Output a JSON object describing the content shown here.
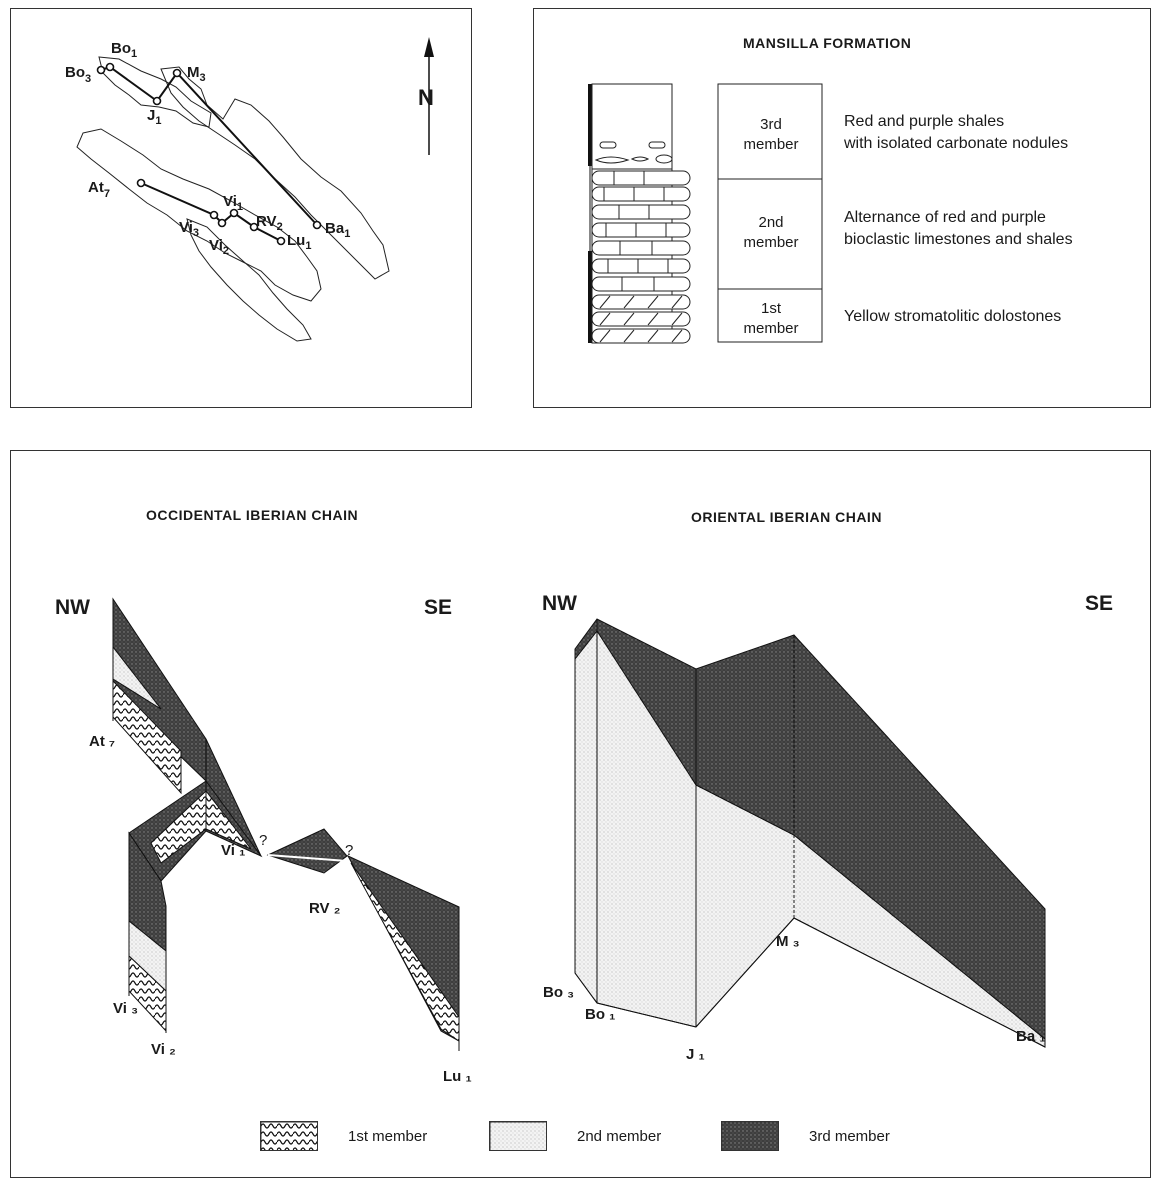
{
  "map_panel": {
    "north": "N",
    "stations": {
      "bo1": "Bo",
      "bo1_sub": "1",
      "bo3": "Bo",
      "bo3_sub": "3",
      "m3": "M",
      "m3_sub": "3",
      "j1": "J",
      "j1_sub": "1",
      "at7": "At",
      "at7_sub": "7",
      "vi1": "Vi",
      "vi1_sub": "1",
      "vi2": "Vi",
      "vi2_sub": "2",
      "vi3": "Vi",
      "vi3_sub": "3",
      "rv2": "RV",
      "rv2_sub": "2",
      "lu1": "Lu",
      "lu1_sub": "1",
      "ba1": "Ba",
      "ba1_sub": "1"
    }
  },
  "formation_panel": {
    "title": "MANSILLA FORMATION",
    "members": [
      {
        "name_line1": "3rd",
        "name_line2": "member",
        "desc_line1": "Red and purple shales",
        "desc_line2": "with isolated carbonate nodules"
      },
      {
        "name_line1": "2nd",
        "name_line2": "member",
        "desc_line1": "Alternance of red and purple",
        "desc_line2": "bioclastic limestones and shales"
      },
      {
        "name_line1": "1st",
        "name_line2": "member",
        "desc_line1": "Yellow stromatolitic dolostones",
        "desc_line2": ""
      }
    ]
  },
  "occidental": {
    "title": "OCCIDENTAL IBERIAN CHAIN",
    "nw": "NW",
    "se": "SE",
    "labels": {
      "at7": "At ₇",
      "vi1": "Vi ₁",
      "vi3": "Vi ₃",
      "vi2": "Vi ₂",
      "rv2": "RV ₂",
      "lu1": "Lu ₁",
      "q1": "?",
      "q2": "?"
    }
  },
  "oriental": {
    "title": "ORIENTAL IBERIAN CHAIN",
    "nw": "NW",
    "se": "SE",
    "labels": {
      "bo3": "Bo ₃",
      "bo1": "Bo ₁",
      "j1": "J ₁",
      "m3": "M ₃",
      "ba1": "Ba ₁"
    }
  },
  "legend": {
    "items": [
      {
        "label": "1st member",
        "pattern": "wavy"
      },
      {
        "label": "2nd member",
        "pattern": "light-stipple"
      },
      {
        "label": "3rd member",
        "pattern": "dark-stipple"
      }
    ]
  },
  "colors": {
    "dark_fill": "#4a4a4a",
    "light_fill": "#ececec",
    "line": "#1a1a1a"
  }
}
